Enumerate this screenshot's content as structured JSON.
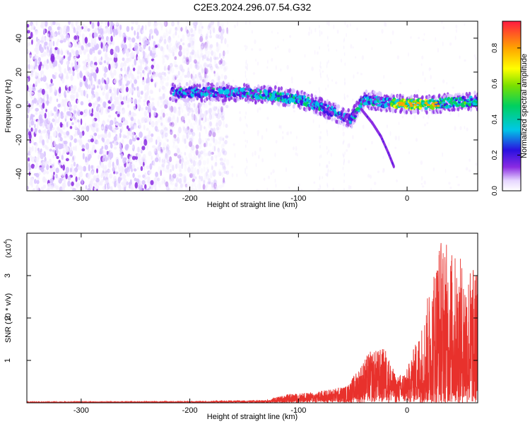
{
  "title": "C2E3.2024.296.07.54.G32",
  "chart_data": [
    {
      "type": "heatmap",
      "xlabel": "Height of straight line (km)",
      "ylabel": "Frequency (Hz)",
      "xlim": [
        -350,
        65
      ],
      "ylim": [
        -50,
        50
      ],
      "xticks": [
        -300,
        -200,
        -100,
        0
      ],
      "yticks": [
        -40,
        -20,
        0,
        20,
        40
      ],
      "colorbar": {
        "label": "Normalized spectral amplitude",
        "range": [
          0,
          0.95
        ],
        "ticks": [
          "0.0",
          "0.2",
          "0.4",
          "0.6",
          "0.8"
        ]
      },
      "features": {
        "noise_region_x": [
          -350,
          -165
        ],
        "main_band": [
          {
            "x": -215,
            "f": 8
          },
          {
            "x": -160,
            "f": 8
          },
          {
            "x": -120,
            "f": 6
          },
          {
            "x": -95,
            "f": 3
          },
          {
            "x": -70,
            "f": -3
          },
          {
            "x": -52,
            "f": -8
          },
          {
            "x": -40,
            "f": 4
          },
          {
            "x": -20,
            "f": 2
          },
          {
            "x": 0,
            "f": 1
          },
          {
            "x": 20,
            "f": 1
          },
          {
            "x": 40,
            "f": 2
          },
          {
            "x": 65,
            "f": 3
          }
        ],
        "descending_branch": [
          {
            "x": -42,
            "f": -2
          },
          {
            "x": -32,
            "f": -10
          },
          {
            "x": -24,
            "f": -18
          },
          {
            "x": -17,
            "f": -28
          },
          {
            "x": -12,
            "f": -36
          }
        ]
      }
    },
    {
      "type": "line",
      "xlabel": "Height of straight line (km)",
      "ylabel": "SNR (10 * v/v)",
      "multiplier": "(x10",
      "multiplier_exp": "4",
      "multiplier_close": ")",
      "xlim": [
        -350,
        65
      ],
      "ylim": [
        0,
        4
      ],
      "xticks": [
        -300,
        -200,
        -100,
        0
      ],
      "yticks": [
        1,
        2,
        3
      ],
      "color": "#e8312c",
      "envelope": [
        {
          "x": -350,
          "max": 0.02
        },
        {
          "x": -200,
          "max": 0.03
        },
        {
          "x": -130,
          "max": 0.06
        },
        {
          "x": -110,
          "max": 0.2
        },
        {
          "x": -85,
          "max": 0.25
        },
        {
          "x": -55,
          "max": 0.4
        },
        {
          "x": -35,
          "max": 1.2
        },
        {
          "x": -20,
          "max": 1.3
        },
        {
          "x": -10,
          "max": 0.6
        },
        {
          "x": 0,
          "max": 0.8
        },
        {
          "x": 15,
          "max": 2.0
        },
        {
          "x": 30,
          "max": 4.0
        },
        {
          "x": 45,
          "max": 3.5
        },
        {
          "x": 60,
          "max": 3.2
        }
      ]
    }
  ]
}
